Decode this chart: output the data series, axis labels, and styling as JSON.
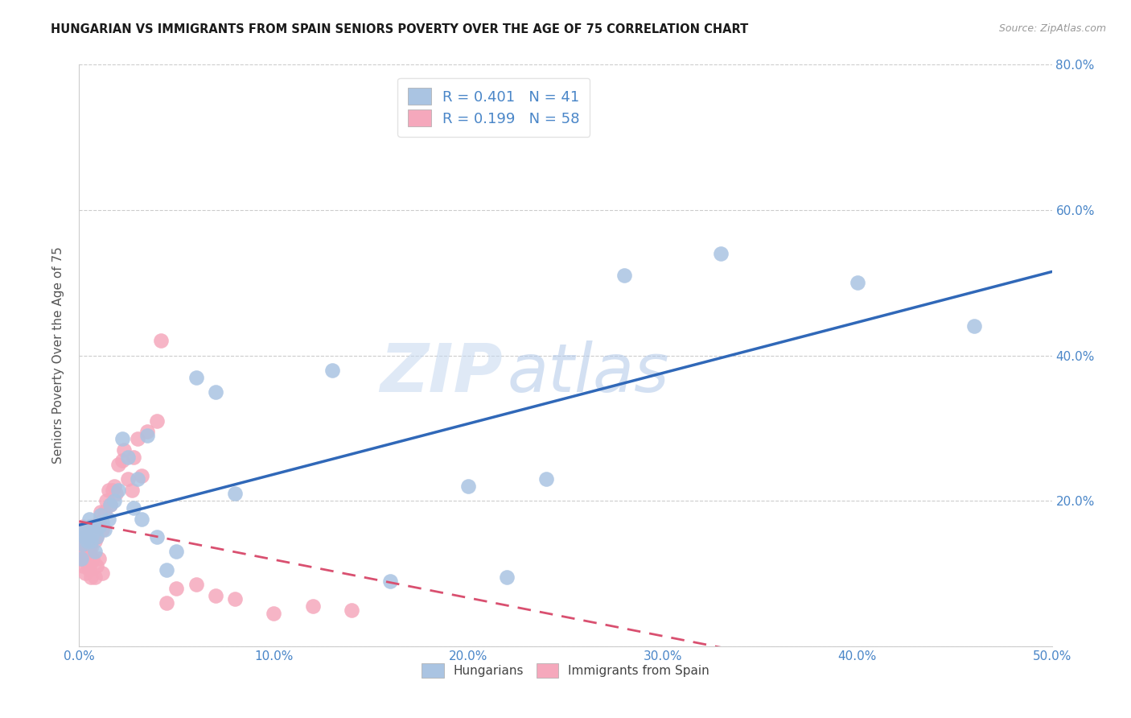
{
  "title": "HUNGARIAN VS IMMIGRANTS FROM SPAIN SENIORS POVERTY OVER THE AGE OF 75 CORRELATION CHART",
  "source": "Source: ZipAtlas.com",
  "ylabel": "Seniors Poverty Over the Age of 75",
  "xlim": [
    0.0,
    0.5
  ],
  "ylim": [
    0.0,
    0.8
  ],
  "xticks": [
    0.0,
    0.1,
    0.2,
    0.3,
    0.4,
    0.5
  ],
  "yticks": [
    0.0,
    0.2,
    0.4,
    0.6,
    0.8
  ],
  "xticklabels": [
    "0.0%",
    "10.0%",
    "20.0%",
    "30.0%",
    "40.0%",
    "50.0%"
  ],
  "left_yticklabels": [
    "",
    "",
    "",
    "",
    ""
  ],
  "right_yticklabels": [
    "",
    "20.0%",
    "40.0%",
    "60.0%",
    "80.0%"
  ],
  "R_hungarian": 0.401,
  "N_hungarian": 41,
  "R_spain": 0.199,
  "N_spain": 58,
  "color_hungarian": "#aac4e2",
  "color_spain": "#f5a8bc",
  "line_color_hungarian": "#3068b8",
  "line_color_spain": "#d95070",
  "watermark_zip": "ZIP",
  "watermark_atlas": "atlas",
  "hungarian_x": [
    0.001,
    0.002,
    0.002,
    0.003,
    0.003,
    0.004,
    0.005,
    0.005,
    0.006,
    0.007,
    0.008,
    0.009,
    0.01,
    0.011,
    0.012,
    0.013,
    0.015,
    0.016,
    0.018,
    0.02,
    0.022,
    0.025,
    0.028,
    0.03,
    0.032,
    0.035,
    0.04,
    0.045,
    0.05,
    0.06,
    0.07,
    0.08,
    0.13,
    0.16,
    0.2,
    0.22,
    0.24,
    0.28,
    0.33,
    0.4,
    0.46
  ],
  "hungarian_y": [
    0.12,
    0.14,
    0.155,
    0.15,
    0.16,
    0.145,
    0.165,
    0.175,
    0.145,
    0.155,
    0.13,
    0.15,
    0.165,
    0.18,
    0.17,
    0.16,
    0.175,
    0.195,
    0.2,
    0.215,
    0.285,
    0.26,
    0.19,
    0.23,
    0.175,
    0.29,
    0.15,
    0.105,
    0.13,
    0.37,
    0.35,
    0.21,
    0.38,
    0.09,
    0.22,
    0.095,
    0.23,
    0.51,
    0.54,
    0.5,
    0.44
  ],
  "spain_x": [
    0.001,
    0.001,
    0.001,
    0.002,
    0.002,
    0.002,
    0.002,
    0.003,
    0.003,
    0.003,
    0.003,
    0.004,
    0.004,
    0.004,
    0.005,
    0.005,
    0.005,
    0.006,
    0.006,
    0.006,
    0.006,
    0.007,
    0.007,
    0.008,
    0.008,
    0.009,
    0.009,
    0.01,
    0.01,
    0.011,
    0.012,
    0.012,
    0.013,
    0.014,
    0.015,
    0.016,
    0.017,
    0.018,
    0.019,
    0.02,
    0.022,
    0.023,
    0.025,
    0.027,
    0.028,
    0.03,
    0.032,
    0.035,
    0.04,
    0.042,
    0.045,
    0.05,
    0.06,
    0.07,
    0.08,
    0.1,
    0.12,
    0.14
  ],
  "spain_y": [
    0.12,
    0.15,
    0.16,
    0.11,
    0.13,
    0.145,
    0.165,
    0.1,
    0.12,
    0.14,
    0.16,
    0.115,
    0.135,
    0.155,
    0.105,
    0.13,
    0.155,
    0.095,
    0.115,
    0.135,
    0.165,
    0.12,
    0.155,
    0.095,
    0.145,
    0.11,
    0.15,
    0.12,
    0.17,
    0.185,
    0.1,
    0.16,
    0.185,
    0.2,
    0.215,
    0.195,
    0.215,
    0.22,
    0.21,
    0.25,
    0.255,
    0.27,
    0.23,
    0.215,
    0.26,
    0.285,
    0.235,
    0.295,
    0.31,
    0.42,
    0.06,
    0.08,
    0.085,
    0.07,
    0.065,
    0.045,
    0.055,
    0.05
  ]
}
